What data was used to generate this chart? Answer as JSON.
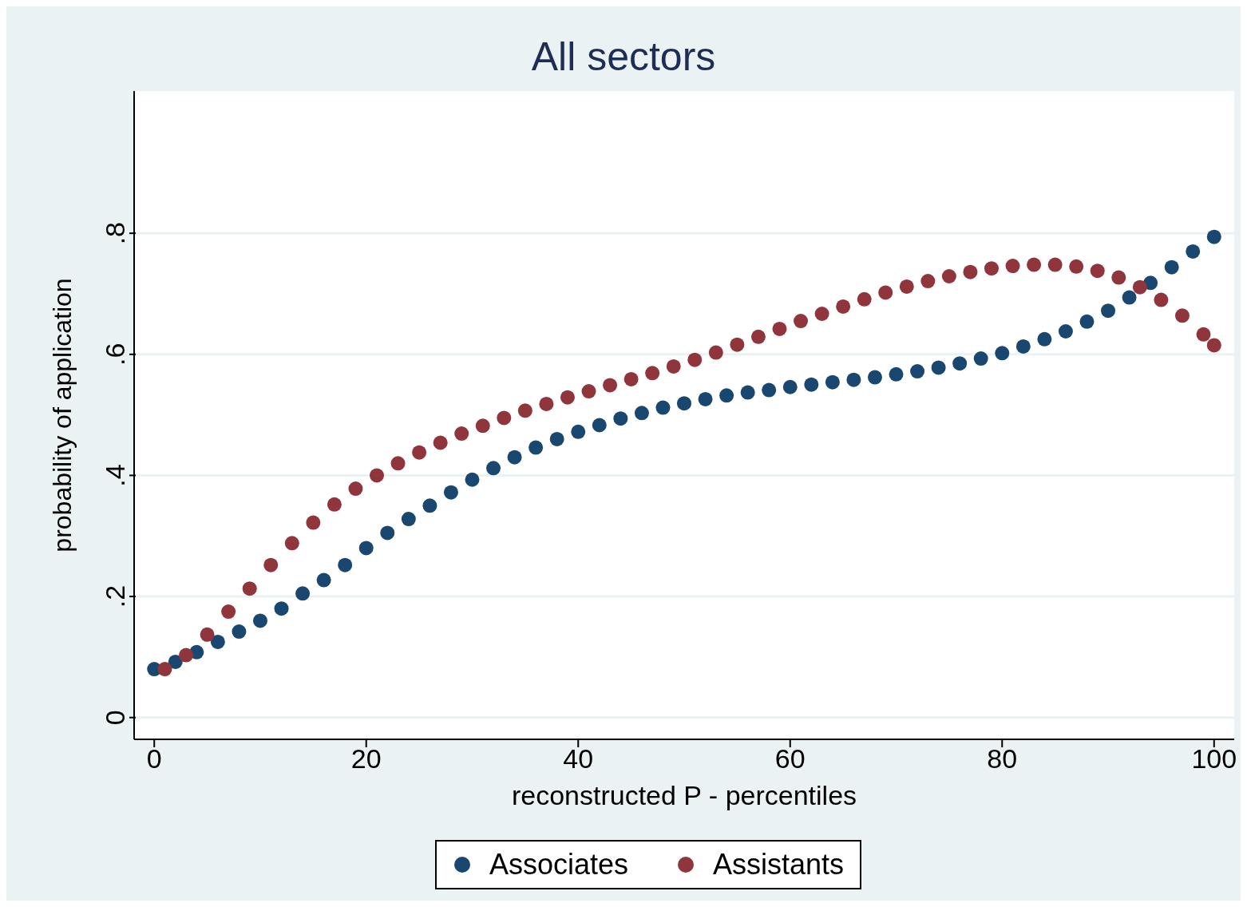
{
  "chart_data": {
    "type": "scatter",
    "title": "All sectors",
    "xlabel": "reconstructed P - percentiles",
    "ylabel": "probability of application",
    "xlim": [
      -1.9,
      101.9
    ],
    "xticks": [
      0,
      20,
      40,
      60,
      80,
      100
    ],
    "ylim": [
      -0.036,
      1.035
    ],
    "yticks": [
      {
        "value": 0,
        "label": "0"
      },
      {
        "value": 0.2,
        "label": ".2"
      },
      {
        "value": 0.4,
        "label": ".4"
      },
      {
        "value": 0.6,
        "label": ".6"
      },
      {
        "value": 0.8,
        "label": ".8"
      }
    ],
    "grid": "y",
    "legend": "bottom",
    "marker": "circle",
    "series": [
      {
        "name": "Associates",
        "color": "#1a476f",
        "x": [
          0,
          2,
          4,
          6,
          8,
          10,
          12,
          14,
          16,
          18,
          20,
          22,
          24,
          26,
          28,
          30,
          32,
          34,
          36,
          38,
          40,
          42,
          44,
          46,
          48,
          50,
          52,
          54,
          56,
          58,
          60,
          62,
          64,
          66,
          68,
          70,
          72,
          74,
          76,
          78,
          80,
          82,
          84,
          86,
          88,
          90,
          92,
          94,
          96,
          98,
          100
        ],
        "values": [
          0.08,
          0.092,
          0.108,
          0.125,
          0.142,
          0.16,
          0.18,
          0.205,
          0.227,
          0.252,
          0.28,
          0.305,
          0.328,
          0.35,
          0.372,
          0.393,
          0.412,
          0.43,
          0.446,
          0.46,
          0.472,
          0.483,
          0.494,
          0.503,
          0.512,
          0.519,
          0.526,
          0.532,
          0.537,
          0.541,
          0.546,
          0.55,
          0.554,
          0.558,
          0.562,
          0.567,
          0.572,
          0.578,
          0.585,
          0.593,
          0.602,
          0.613,
          0.625,
          0.638,
          0.654,
          0.672,
          0.694,
          0.718,
          0.744,
          0.77,
          0.794
        ]
      },
      {
        "name": "Assistants",
        "color": "#90353b",
        "x": [
          1,
          3,
          5,
          7,
          9,
          11,
          13,
          15,
          17,
          19,
          21,
          23,
          25,
          27,
          29,
          31,
          33,
          35,
          37,
          39,
          41,
          43,
          45,
          47,
          49,
          51,
          53,
          55,
          57,
          59,
          61,
          63,
          65,
          67,
          69,
          71,
          73,
          75,
          77,
          79,
          81,
          83,
          85,
          87,
          89,
          91,
          93,
          95,
          97,
          99,
          100
        ],
        "values": [
          0.08,
          0.103,
          0.137,
          0.175,
          0.213,
          0.252,
          0.288,
          0.322,
          0.352,
          0.378,
          0.4,
          0.42,
          0.438,
          0.454,
          0.469,
          0.482,
          0.495,
          0.507,
          0.518,
          0.529,
          0.539,
          0.549,
          0.559,
          0.569,
          0.58,
          0.591,
          0.603,
          0.616,
          0.629,
          0.642,
          0.655,
          0.667,
          0.679,
          0.691,
          0.702,
          0.712,
          0.721,
          0.729,
          0.736,
          0.742,
          0.746,
          0.748,
          0.748,
          0.745,
          0.738,
          0.727,
          0.711,
          0.69,
          0.664,
          0.633,
          0.615
        ]
      }
    ]
  }
}
